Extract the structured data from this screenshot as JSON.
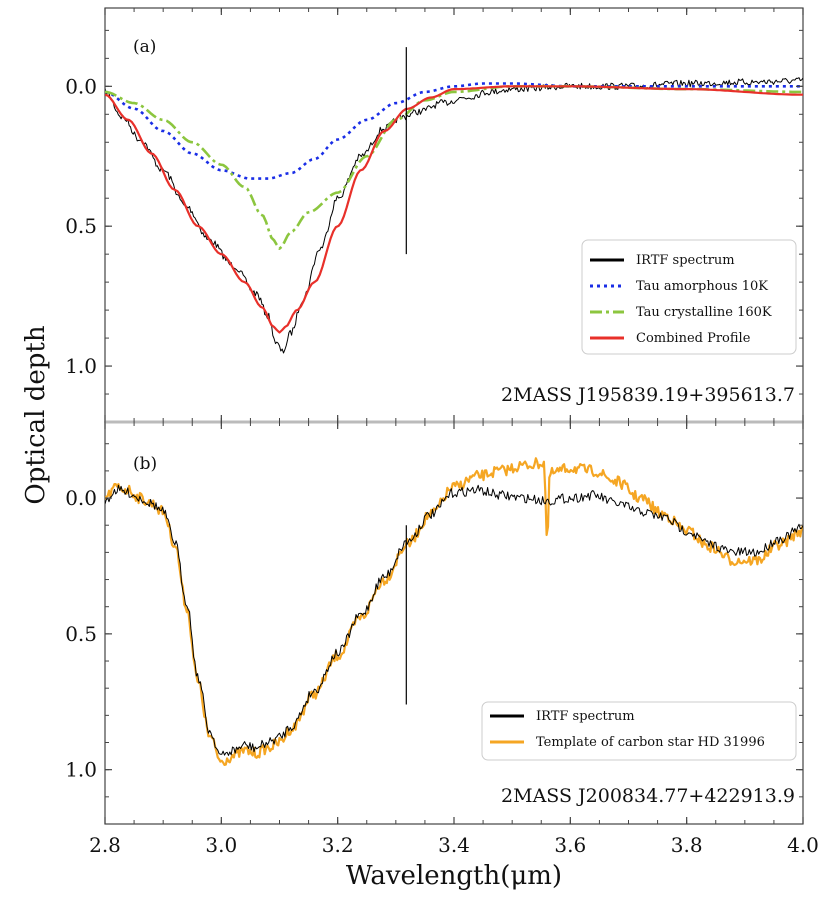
{
  "figure": {
    "xlabel": "Wavelength(μm)",
    "ylabel": "Optical depth",
    "x_ticks": [
      "2.8",
      "3.0",
      "3.2",
      "3.4",
      "3.6",
      "3.8",
      "4.0"
    ],
    "y_ticks": [
      "0.0",
      "0.5",
      "1.0"
    ]
  },
  "chart_data": [
    {
      "type": "line",
      "panel_label": "(a)",
      "source": "2MASS J195839.19+395613.7",
      "xlim": [
        2.8,
        4.0
      ],
      "ylim": [
        1.2,
        -0.28
      ],
      "y_inverted": true,
      "xlabel": "Wavelength(μm)",
      "ylabel": "Optical depth",
      "legend_position": "lower-right",
      "series": [
        {
          "name": "IRTF spectrum",
          "color": "#000000",
          "style": "solid",
          "noise": 0.012,
          "x": [
            2.8,
            2.83,
            2.86,
            2.9,
            2.94,
            2.98,
            3.02,
            3.06,
            3.08,
            3.095,
            3.105,
            3.12,
            3.14,
            3.17,
            3.2,
            3.24,
            3.28,
            3.31,
            3.34,
            3.38,
            3.42,
            3.46,
            3.5,
            3.6,
            3.7,
            3.8,
            3.9,
            4.0
          ],
          "y": [
            0.02,
            0.11,
            0.19,
            0.3,
            0.43,
            0.55,
            0.64,
            0.74,
            0.82,
            0.92,
            0.95,
            0.88,
            0.76,
            0.58,
            0.4,
            0.25,
            0.15,
            0.11,
            0.09,
            0.06,
            0.04,
            0.02,
            0.01,
            0.0,
            0.0,
            -0.01,
            -0.015,
            -0.02
          ]
        },
        {
          "name": "Tau amorphous 10K",
          "color": "#1a2ee6",
          "style": "dotted",
          "x": [
            2.8,
            2.85,
            2.9,
            2.95,
            3.0,
            3.05,
            3.08,
            3.12,
            3.16,
            3.2,
            3.25,
            3.3,
            3.35,
            3.4,
            3.45,
            3.5,
            3.6,
            3.8,
            4.0
          ],
          "y": [
            0.02,
            0.08,
            0.16,
            0.24,
            0.3,
            0.33,
            0.33,
            0.31,
            0.26,
            0.19,
            0.12,
            0.06,
            0.02,
            0.0,
            -0.01,
            -0.01,
            0.0,
            0.0,
            0.0
          ]
        },
        {
          "name": "Tau crystalline 160K",
          "color": "#8cc63f",
          "style": "dashdot",
          "x": [
            2.8,
            2.85,
            2.9,
            2.95,
            3.0,
            3.04,
            3.07,
            3.09,
            3.1,
            3.12,
            3.15,
            3.2,
            3.25,
            3.3,
            3.35,
            3.4,
            3.5,
            3.6,
            3.8,
            4.0
          ],
          "y": [
            0.02,
            0.06,
            0.12,
            0.2,
            0.28,
            0.36,
            0.46,
            0.55,
            0.58,
            0.52,
            0.45,
            0.38,
            0.25,
            0.12,
            0.05,
            0.02,
            0.0,
            0.0,
            0.01,
            0.02
          ]
        },
        {
          "name": "Combined Profile",
          "color": "#e8302a",
          "style": "solid",
          "x": [
            2.8,
            2.84,
            2.88,
            2.92,
            2.96,
            3.0,
            3.04,
            3.07,
            3.09,
            3.1,
            3.11,
            3.13,
            3.16,
            3.2,
            3.24,
            3.28,
            3.32,
            3.36,
            3.4,
            3.5,
            3.6,
            3.8,
            4.0
          ],
          "y": [
            0.03,
            0.12,
            0.24,
            0.37,
            0.5,
            0.6,
            0.7,
            0.79,
            0.86,
            0.88,
            0.86,
            0.8,
            0.7,
            0.5,
            0.3,
            0.16,
            0.08,
            0.04,
            0.01,
            0.0,
            0.0,
            0.01,
            0.03
          ]
        }
      ]
    },
    {
      "type": "line",
      "panel_label": "(b)",
      "source": "2MASS J200834.77+422913.9",
      "xlim": [
        2.8,
        4.0
      ],
      "ylim": [
        1.2,
        -0.28
      ],
      "y_inverted": true,
      "xlabel": "Wavelength(μm)",
      "ylabel": "Optical depth",
      "legend_position": "lower-right",
      "series": [
        {
          "name": "Template of carbon star HD 31996",
          "color": "#f5a623",
          "style": "solid",
          "noise": 0.02,
          "x": [
            2.8,
            2.82,
            2.84,
            2.86,
            2.88,
            2.9,
            2.92,
            2.94,
            2.96,
            2.98,
            3.0,
            3.02,
            3.04,
            3.06,
            3.08,
            3.1,
            3.12,
            3.16,
            3.2,
            3.24,
            3.28,
            3.32,
            3.36,
            3.4,
            3.44,
            3.48,
            3.52,
            3.555,
            3.56,
            3.565,
            3.6,
            3.64,
            3.68,
            3.72,
            3.76,
            3.8,
            3.84,
            3.88,
            3.92,
            3.96,
            4.0
          ],
          "y": [
            0.0,
            -0.04,
            -0.03,
            0.0,
            0.02,
            0.05,
            0.17,
            0.4,
            0.68,
            0.88,
            0.97,
            0.95,
            0.93,
            0.94,
            0.92,
            0.9,
            0.85,
            0.72,
            0.58,
            0.44,
            0.3,
            0.17,
            0.06,
            -0.04,
            -0.08,
            -0.1,
            -0.12,
            -0.13,
            0.16,
            -0.09,
            -0.11,
            -0.1,
            -0.06,
            0.0,
            0.06,
            0.12,
            0.18,
            0.23,
            0.23,
            0.17,
            0.12
          ]
        },
        {
          "name": "IRTF spectrum",
          "color": "#000000",
          "style": "solid",
          "noise": 0.018,
          "x": [
            2.8,
            2.82,
            2.84,
            2.86,
            2.88,
            2.9,
            2.92,
            2.94,
            2.96,
            2.98,
            3.0,
            3.02,
            3.04,
            3.06,
            3.08,
            3.1,
            3.12,
            3.16,
            3.2,
            3.24,
            3.28,
            3.32,
            3.36,
            3.4,
            3.44,
            3.48,
            3.52,
            3.56,
            3.6,
            3.64,
            3.68,
            3.72,
            3.76,
            3.8,
            3.84,
            3.88,
            3.92,
            3.96,
            4.0
          ],
          "y": [
            0.01,
            -0.03,
            -0.02,
            0.0,
            0.02,
            0.05,
            0.16,
            0.38,
            0.66,
            0.86,
            0.95,
            0.93,
            0.91,
            0.92,
            0.9,
            0.88,
            0.84,
            0.71,
            0.57,
            0.43,
            0.29,
            0.16,
            0.06,
            -0.02,
            -0.03,
            -0.01,
            0.0,
            0.01,
            0.0,
            -0.01,
            0.02,
            0.05,
            0.07,
            0.12,
            0.17,
            0.2,
            0.2,
            0.15,
            0.11
          ]
        }
      ]
    }
  ]
}
